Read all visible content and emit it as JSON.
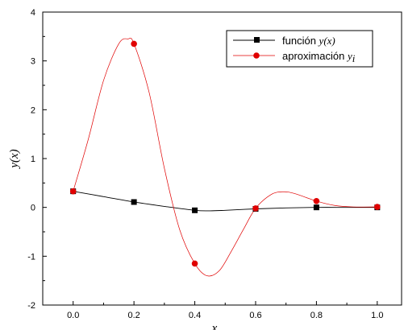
{
  "chart_data": {
    "type": "line",
    "xlabel": "x",
    "ylabel": "y(x)",
    "xlim": [
      -0.1,
      1.08
    ],
    "ylim": [
      -2,
      4
    ],
    "xticks": [
      "0.0",
      "0.2",
      "0.4",
      "0.6",
      "0.8",
      "1.0"
    ],
    "yticks": [
      "-2",
      "-1",
      "0",
      "1",
      "2",
      "3",
      "4"
    ],
    "grid": false,
    "legend_position": "top-right",
    "series": [
      {
        "name": "función y(x)",
        "legend_text": "función ",
        "legend_math": "y(x)",
        "marker": "square",
        "color": "#000000",
        "x": [
          0.0,
          0.2,
          0.4,
          0.6,
          0.8,
          1.0
        ],
        "y": [
          0.33,
          0.11,
          -0.06,
          -0.03,
          0.0,
          0.0
        ]
      },
      {
        "name": "aproximación y_i",
        "legend_text": "aproximación ",
        "legend_math": "y",
        "legend_sub": "i",
        "marker": "circle",
        "color": "#e00000",
        "x": [
          0.0,
          0.2,
          0.4,
          0.6,
          0.8,
          1.0
        ],
        "y": [
          0.33,
          3.35,
          -1.15,
          -0.02,
          0.13,
          0.01
        ]
      }
    ],
    "curves": [
      {
        "color": "#000000",
        "x": [
          0.0,
          0.1,
          0.2,
          0.3,
          0.4,
          0.45,
          0.5,
          0.6,
          0.7,
          0.8,
          0.9,
          1.0
        ],
        "y": [
          0.33,
          0.22,
          0.11,
          0.02,
          -0.06,
          -0.07,
          -0.06,
          -0.03,
          -0.01,
          0.0,
          0.0,
          0.0
        ]
      },
      {
        "color": "#e00000",
        "x": [
          0.0,
          0.05,
          0.1,
          0.15,
          0.18,
          0.2,
          0.25,
          0.3,
          0.35,
          0.4,
          0.44,
          0.48,
          0.52,
          0.56,
          0.6,
          0.65,
          0.69,
          0.73,
          0.8,
          0.86,
          0.92,
          1.0
        ],
        "y": [
          0.33,
          1.4,
          2.6,
          3.35,
          3.45,
          3.35,
          2.35,
          0.8,
          -0.45,
          -1.15,
          -1.4,
          -1.3,
          -0.9,
          -0.45,
          -0.02,
          0.26,
          0.32,
          0.28,
          0.13,
          0.04,
          0.01,
          0.01
        ]
      }
    ]
  }
}
